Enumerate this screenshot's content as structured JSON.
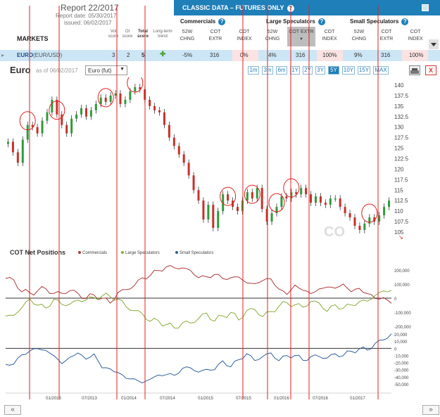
{
  "report": {
    "title": "Report 22/2017",
    "report_date": "Report date: 05/30/2017",
    "issued": "issued: 06/02/2017"
  },
  "markets_label": "MARKETS",
  "score_headers": [
    "Vol score",
    "OI score",
    "Total score",
    "Long-term trend"
  ],
  "classic": {
    "title": "CLASSIC DATA – FUTURES ONLY",
    "groups": [
      "Commercials",
      "Large Speculators",
      "Small Speculators"
    ],
    "col_headers": [
      "52W CHNG",
      "COT EXTR",
      "COT INDEX",
      "52W CHNG",
      "COT EXTR",
      "COT INDEX",
      "52W CHNG",
      "COT EXTR",
      "COT INDEX"
    ]
  },
  "row": {
    "name": "EURO",
    "symbol": "(EUR/USD)",
    "vol": "3",
    "oi": "2",
    "total": "5",
    "values": [
      "-5%",
      "316",
      "0%",
      "4%",
      "316",
      "100%",
      "9%",
      "316",
      "100%"
    ]
  },
  "toolbar": {
    "chart_title": "Euro",
    "as_of": "as of 06/02/2017",
    "select_value": "Euro (fut)",
    "ranges": [
      "1m",
      "3m",
      "6m",
      "1Y",
      "2Y",
      "3Y",
      "5Y",
      "10Y",
      "15Y",
      "MAX"
    ],
    "active_range": "5Y",
    "close": "X"
  },
  "cot_panel": {
    "title": "COT Net Positions",
    "legend": [
      "Commercials",
      "Large Speculators",
      "Small Speculators"
    ]
  },
  "colors": {
    "accent": "#1f7fb8",
    "commercials": "#b03a3a",
    "large_spec": "#8aab3c",
    "small_spec": "#2f5f9e",
    "up_candle": "#2e9b3a",
    "down_candle": "#c8302a",
    "marker": "#e02020"
  },
  "chart_data": [
    {
      "type": "candlestick",
      "title": "Euro",
      "y_ticks": [
        "140",
        "137.5",
        "135",
        "132.5",
        "130",
        "127.5",
        "125",
        "122.5",
        "120",
        "117.5",
        "115",
        "112.5",
        "110",
        "107.5",
        "105"
      ],
      "ylim": [
        104,
        141
      ],
      "x_ticks": [
        "01/2013",
        "07/2013",
        "01/2014",
        "07/2014",
        "01/2015",
        "07/2015",
        "01/2016",
        "07/2016",
        "01/2017"
      ],
      "close_series": [
        126.5,
        124.0,
        121.5,
        127.0,
        130.5,
        130.0,
        128.5,
        131.5,
        133.5,
        136.5,
        133.0,
        130.5,
        128.5,
        132.0,
        133.0,
        134.5,
        132.5,
        134.0,
        135.5,
        137.0,
        136.0,
        137.5,
        138.0,
        135.5,
        136.5,
        138.5,
        139.5,
        139.0,
        136.5,
        135.0,
        134.0,
        133.5,
        130.5,
        127.5,
        125.5,
        123.5,
        121.5,
        118.5,
        115.0,
        112.5,
        108.0,
        111.5,
        106.0,
        110.0,
        114.0,
        112.5,
        111.0,
        110.0,
        112.5,
        114.5,
        113.0,
        115.5,
        110.5,
        107.5,
        109.5,
        111.0,
        113.5,
        113.0,
        114.5,
        114.0,
        115.5,
        114.0,
        112.0,
        113.5,
        112.0,
        111.5,
        113.0,
        113.0,
        111.0,
        109.5,
        108.5,
        106.5,
        105.5,
        107.0,
        108.5,
        107.5,
        109.0,
        111.0,
        112.5
      ]
    },
    {
      "type": "line",
      "title": "COT Net Positions",
      "y_ticks_upper": [
        "200,000",
        "100,000",
        "0",
        "-100,000",
        "-200,000"
      ],
      "y_ticks_lower": [
        "20,000",
        "10,000",
        "0",
        "-10,000",
        "-20,000",
        "-30,000",
        "-40,000",
        "-50,000"
      ],
      "series": [
        {
          "name": "Commercials",
          "values": [
            140000,
            120000,
            60000,
            30000,
            50000,
            80000,
            20000,
            40000,
            60000,
            20000,
            10000,
            20000,
            -10000,
            -20000,
            30000,
            60000,
            100000,
            130000,
            170000,
            200000,
            210000,
            230000,
            210000,
            190000,
            160000,
            140000,
            170000,
            150000,
            130000,
            160000,
            110000,
            90000,
            140000,
            130000,
            60000,
            40000,
            80000,
            60000,
            40000,
            50000,
            90000,
            70000,
            90000,
            60000,
            60000,
            30000,
            10000,
            -10000,
            -30000
          ]
        },
        {
          "name": "Large Speculators",
          "values": [
            -140000,
            -120000,
            -60000,
            -20000,
            -40000,
            -70000,
            -20000,
            -30000,
            -50000,
            -20000,
            0,
            -10000,
            20000,
            20000,
            -20000,
            -50000,
            -90000,
            -120000,
            -150000,
            -170000,
            -190000,
            -200000,
            -190000,
            -170000,
            -140000,
            -120000,
            -150000,
            -130000,
            -110000,
            -140000,
            -100000,
            -80000,
            -120000,
            -110000,
            -50000,
            -30000,
            -60000,
            -50000,
            -30000,
            -40000,
            -80000,
            -60000,
            -70000,
            -40000,
            -40000,
            -10000,
            20000,
            40000,
            70000
          ]
        },
        {
          "name": "Small Speculators",
          "values": [
            -25000,
            -20000,
            -10000,
            -5000,
            2000,
            -5000,
            -10000,
            -20000,
            -15000,
            -5000,
            -15000,
            -10000,
            -25000,
            -30000,
            -35000,
            -40000,
            -45000,
            -48000,
            -42000,
            -40000,
            -35000,
            -38000,
            -30000,
            -25000,
            -35000,
            -30000,
            -28000,
            -20000,
            -25000,
            -15000,
            -10000,
            -15000,
            -12000,
            -8000,
            -15000,
            -12000,
            -10000,
            -15000,
            -14000,
            -10000,
            -13000,
            -10000,
            -8000,
            -5000,
            -2000,
            0,
            5000,
            12000,
            22000
          ]
        }
      ]
    }
  ]
}
